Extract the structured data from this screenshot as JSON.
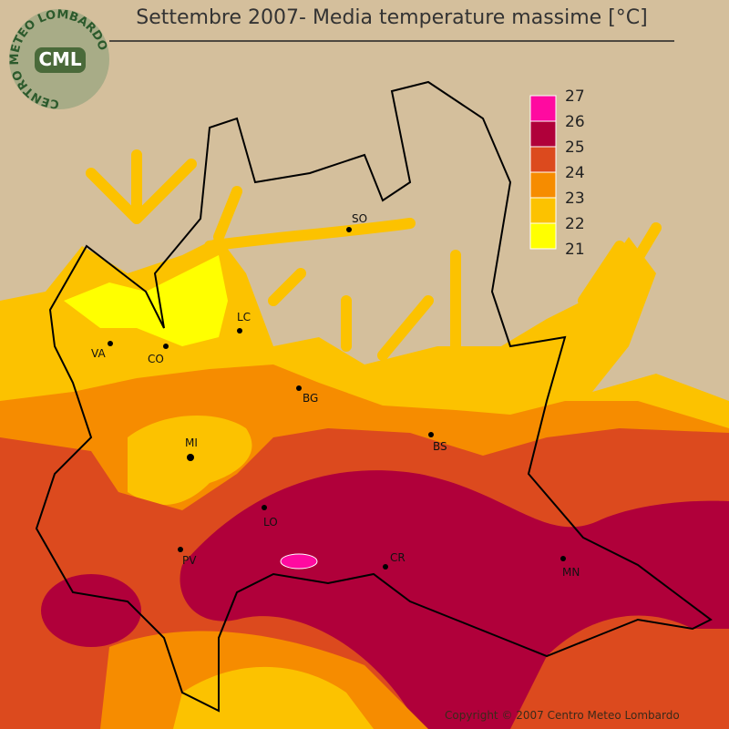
{
  "title": "Settembre 2007- Media temperature massime [°C]",
  "logo": {
    "ring_text": "CENTRO METEO LOMBARDO",
    "initials": "CML"
  },
  "legend": {
    "labels": [
      27,
      26,
      25,
      24,
      23,
      22,
      21
    ],
    "colors": [
      "#ff0aa0",
      "#b0003a",
      "#dc4a1e",
      "#f68c00",
      "#fcc200",
      "#ffff00"
    ]
  },
  "cities": [
    "SO",
    "LC",
    "VA",
    "CO",
    "BG",
    "BS",
    "MI",
    "LO",
    "PV",
    "CR",
    "MN"
  ],
  "copyright": "Copyright © 2007 Centro Meteo Lombardo"
}
